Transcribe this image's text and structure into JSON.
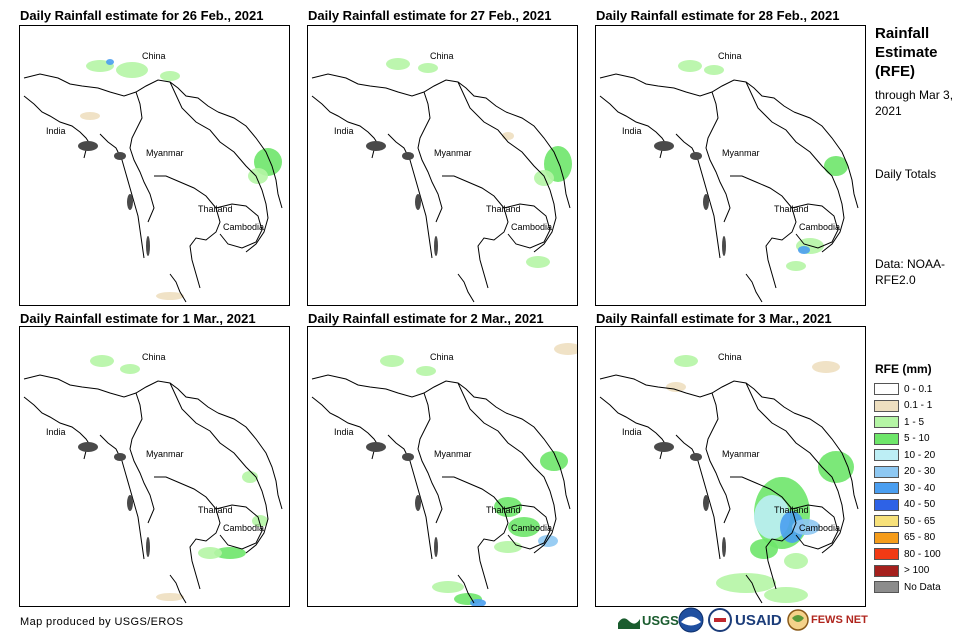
{
  "panels": [
    {
      "title": "Daily Rainfall estimate for 26 Feb., 2021",
      "day_index": 0
    },
    {
      "title": "Daily Rainfall estimate for 27 Feb., 2021",
      "day_index": 1
    },
    {
      "title": "Daily Rainfall estimate for 28 Feb., 2021",
      "day_index": 2
    },
    {
      "title": "Daily Rainfall estimate for 1 Mar., 2021",
      "day_index": 3
    },
    {
      "title": "Daily Rainfall estimate for 2 Mar., 2021",
      "day_index": 4
    },
    {
      "title": "Daily Rainfall estimate for 3 Mar., 2021",
      "day_index": 5
    }
  ],
  "country_labels": {
    "china": "China",
    "india": "India",
    "myanmar": "Myanmar",
    "thailand": "Thailand",
    "cambodia": "Cambodia"
  },
  "side": {
    "title": "Rainfall Estimate (RFE)",
    "through": "through Mar 3, 2021",
    "totals": "Daily Totals",
    "data_source": "Data: NOAA-RFE2.0"
  },
  "legend": {
    "title": "RFE (mm)",
    "items": [
      {
        "label": "0 - 0.1",
        "color": "#ffffff"
      },
      {
        "label": "0.1 - 1",
        "color": "#eedfc0"
      },
      {
        "label": "1 - 5",
        "color": "#b5f5a5"
      },
      {
        "label": "5 - 10",
        "color": "#6ee66a"
      },
      {
        "label": "10 - 20",
        "color": "#bdeef5"
      },
      {
        "label": "20 - 30",
        "color": "#8ec8f2"
      },
      {
        "label": "30 - 40",
        "color": "#4a9ef0"
      },
      {
        "label": "40 - 50",
        "color": "#2e62e6"
      },
      {
        "label": "50 - 65",
        "color": "#f7e17a"
      },
      {
        "label": "65 - 80",
        "color": "#f59c1a"
      },
      {
        "label": "80 - 100",
        "color": "#f23a14"
      },
      {
        "label": "> 100",
        "color": "#a5201d"
      },
      {
        "label": "No Data",
        "color": "#8c8c8c"
      }
    ]
  },
  "credit": "Map produced by USGS/EROS",
  "logos": {
    "usgs": "USGS",
    "noaa": "NOAA",
    "usaid": "USAID",
    "fewsnet": "FEWS NET"
  },
  "colors": {
    "border": "#000000",
    "coast_fill": "#4a4a4a"
  }
}
